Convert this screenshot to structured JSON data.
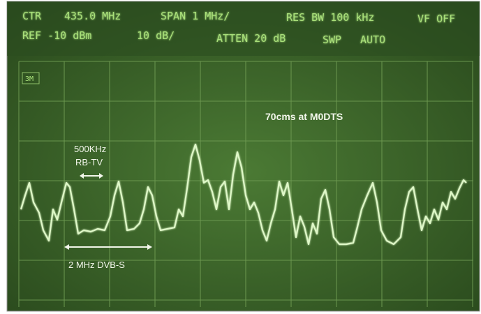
{
  "header": {
    "row1": {
      "ctr": "CTR",
      "center": "435.0 MHz",
      "span": "SPAN 1 MHz/",
      "res_bw": "RES BW 100 kHz",
      "vf": "VF OFF"
    },
    "row2": {
      "ref": "REF -10 dBm",
      "scale": "10 dB/",
      "atten": "ATTEN 20 dB",
      "swp": "SWP",
      "swp_mode": "AUTO"
    }
  },
  "marker": "3M",
  "annotations": {
    "title": "70cms at M0DTS",
    "rbtv_width": "500KHz",
    "rbtv": "RB-TV",
    "dvbs": "2 MHz DVB-S"
  }
}
